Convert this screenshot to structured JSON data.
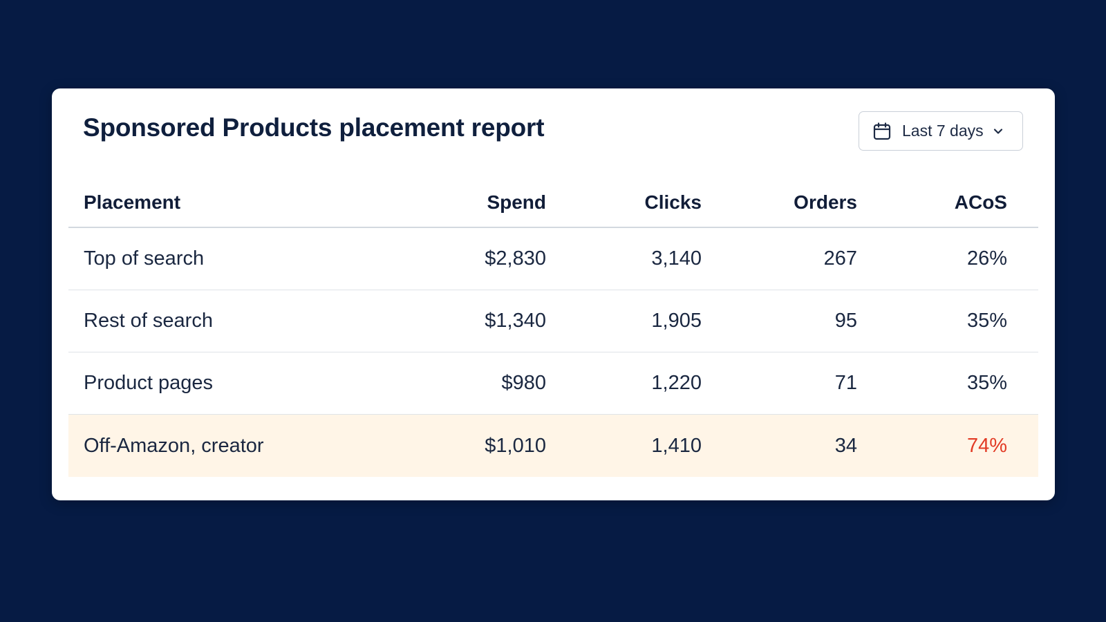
{
  "report": {
    "title": "Sponsored Products placement report",
    "date_range": {
      "label": "Last 7 days",
      "icon": "calendar-icon",
      "chevron_icon": "chevron-down-icon"
    }
  },
  "table": {
    "headers": [
      "Placement",
      "Spend",
      "Clicks",
      "Orders",
      "ACoS"
    ],
    "rows": [
      {
        "placement": "Top of search",
        "spend": "$2,830",
        "clicks": "3,140",
        "orders": "267",
        "acos": "26%"
      },
      {
        "placement": "Rest of search",
        "spend": "$1,340",
        "clicks": "1,905",
        "orders": "95",
        "acos": "35%"
      },
      {
        "placement": "Product pages",
        "spend": "$980",
        "clicks": "1,220",
        "orders": "71",
        "acos": "35%"
      },
      {
        "placement": "Off-Amazon, creator",
        "spend": "$1,010",
        "clicks": "1,410",
        "orders": "34",
        "acos": "74%",
        "highlighted": true
      }
    ]
  },
  "colors": {
    "background": "#061b44",
    "highlight_row": "#fff5e7",
    "alert_text": "#e23b25"
  }
}
